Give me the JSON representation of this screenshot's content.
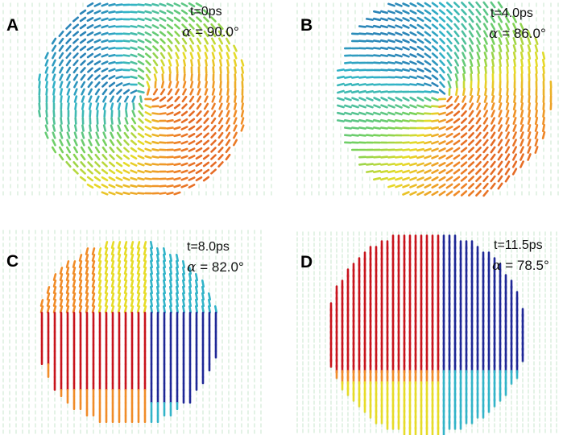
{
  "panels": [
    {
      "letter": "A",
      "time": "t=0ps",
      "angle_symbol": "α",
      "angle_value": "= 90.0°",
      "alpha_deg": 90.0,
      "domain_pattern": "vortex-spiral"
    },
    {
      "letter": "B",
      "time": "t=4.0ps",
      "angle_symbol": "α",
      "angle_value": "= 86.0°",
      "alpha_deg": 86.0,
      "domain_pattern": "vortex-relaxing"
    },
    {
      "letter": "C",
      "time": "t=8.0ps",
      "angle_symbol": "α",
      "angle_value": "= 82.0°",
      "alpha_deg": 82.0,
      "domain_pattern": "four-quadrant"
    },
    {
      "letter": "D",
      "time": "t=11.5ps",
      "angle_symbol": "α",
      "angle_value": "= 78.5°",
      "alpha_deg": 78.5,
      "domain_pattern": "four-quadrant-vertical"
    }
  ],
  "colors": {
    "red": "#c8141c",
    "orange": "#f08c28",
    "yellow": "#e6dc28",
    "green": "#78d25a",
    "cyan": "#32b4c8",
    "blue": "#1e2896",
    "background_arrow": "#a8d8b0"
  }
}
